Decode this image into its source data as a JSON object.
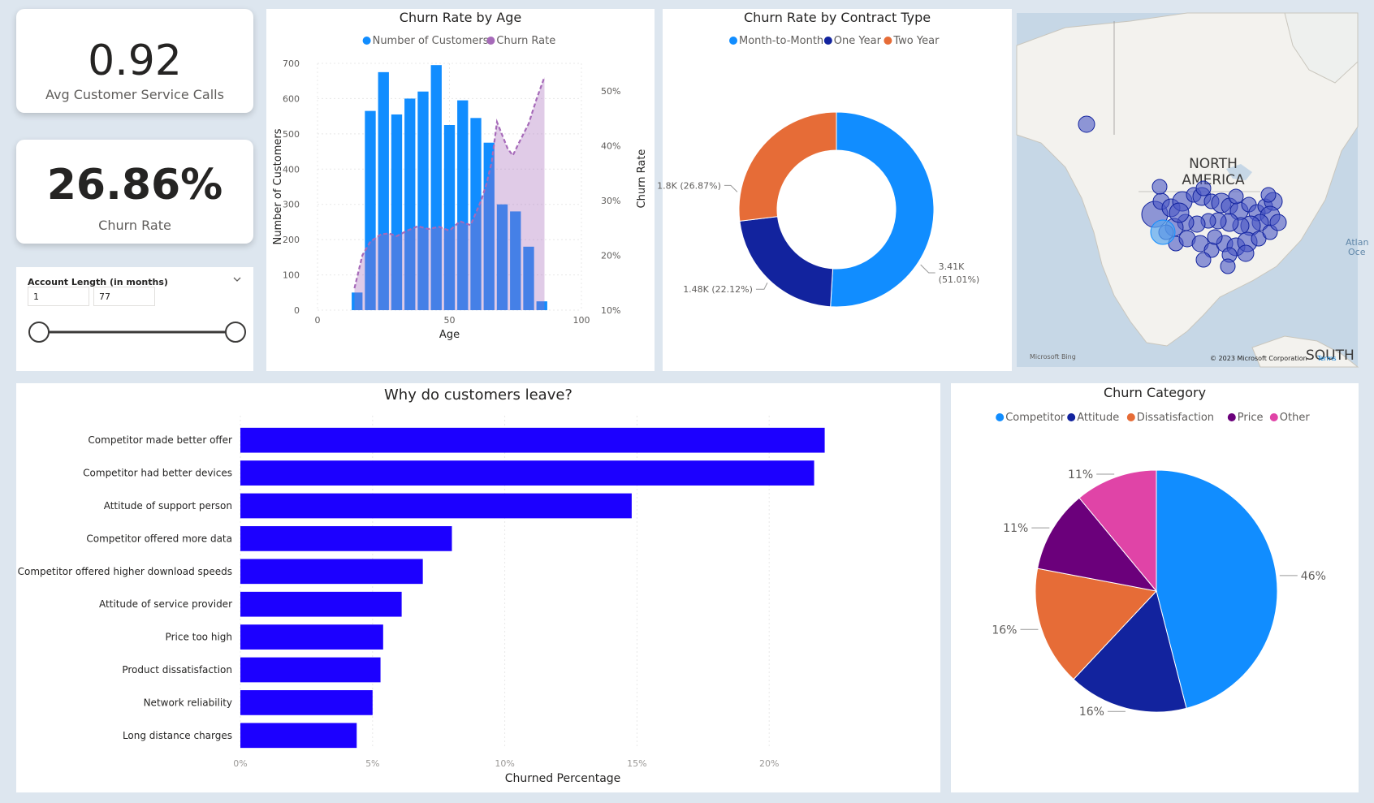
{
  "kpis": [
    {
      "value": "0.92",
      "label": "Avg Customer Service Calls"
    },
    {
      "value": "26.86%",
      "label": "Churn Rate"
    }
  ],
  "slicer": {
    "title": "Account Length (in months)",
    "min_value": "1",
    "max_value": "77"
  },
  "map": {
    "label_line1": "NORTH",
    "label_line2": "AMERICA",
    "south_label": "SOUTH",
    "atlantic_label": "Atlan",
    "ocean_label": "Oce",
    "attribution": "© 2023 Microsoft Corporation",
    "terms": "Terms",
    "bing": "Microsoft Bing"
  },
  "colors": {
    "accent_blue": "#118dff",
    "dark_blue": "#12239e",
    "orange": "#e66c37",
    "purple": "#6b007b",
    "pink": "#e044a7",
    "bar_blue": "#1c00ff",
    "churn_purple": "#a66ab9",
    "background": "#dde6ef"
  },
  "chart_data": [
    {
      "id": "age",
      "type": "bar",
      "title": "Churn Rate by Age",
      "xlabel": "Age",
      "ylabel": "Number of Customers",
      "y2label": "Churn Rate",
      "xlim": [
        0,
        100
      ],
      "ylim": [
        0,
        700
      ],
      "y2lim": [
        10,
        55
      ],
      "x_ticks": [
        "0",
        "50",
        "100"
      ],
      "y_ticks": [
        "0",
        "100",
        "200",
        "300",
        "400",
        "500",
        "600",
        "700"
      ],
      "y2_ticks": [
        "10%",
        "20%",
        "30%",
        "40%",
        "50%"
      ],
      "series": [
        {
          "name": "Number of Customers",
          "type": "bar",
          "x": [
            15,
            20,
            25,
            30,
            35,
            40,
            45,
            50,
            55,
            60,
            65,
            70,
            75,
            80,
            85
          ],
          "values": [
            50,
            565,
            675,
            555,
            600,
            620,
            695,
            525,
            595,
            545,
            475,
            300,
            280,
            180,
            25
          ]
        },
        {
          "name": "Churn Rate",
          "type": "area",
          "x": [
            14,
            17,
            20,
            24,
            27,
            30,
            34,
            38,
            42,
            46,
            50,
            54,
            58,
            62,
            64,
            66,
            68,
            72,
            74,
            76,
            80,
            83,
            86
          ],
          "values": [
            14,
            20,
            22.5,
            23.8,
            24,
            23.5,
            24.5,
            25.3,
            24.8,
            25.2,
            24.5,
            26.2,
            25.5,
            30,
            33,
            37,
            44.3,
            39.5,
            38.2,
            40.2,
            44,
            48.5,
            52.5
          ]
        }
      ]
    },
    {
      "id": "contract",
      "type": "pie",
      "donut": true,
      "title": "Churn Rate by Contract Type",
      "categories": [
        "Month-to-Month",
        "One Year",
        "Two Year"
      ],
      "values": [
        3410,
        1480,
        1800
      ],
      "percent": [
        51.01,
        22.12,
        26.87
      ],
      "labels": [
        "3.41K",
        "(51.01%)",
        "1.48K (22.12%)",
        "1.8K (26.87%)"
      ]
    },
    {
      "id": "reasons",
      "type": "bar",
      "orientation": "horizontal",
      "title": "Why do customers leave?",
      "xlabel": "Churned Percentage",
      "xlim": [
        0,
        25
      ],
      "x_ticks": [
        "0%",
        "5%",
        "10%",
        "15%",
        "20%"
      ],
      "categories": [
        "Competitor made better offer",
        "Competitor had better devices",
        "Attitude of support person",
        "Competitor offered more data",
        "Competitor offered higher download speeds",
        "Attitude of service provider",
        "Price too high",
        "Product dissatisfaction",
        "Network reliability",
        "Long distance charges"
      ],
      "values": [
        22.1,
        21.7,
        14.8,
        8.0,
        6.9,
        6.1,
        5.4,
        5.3,
        5.0,
        4.4
      ]
    },
    {
      "id": "category",
      "type": "pie",
      "title": "Churn Category",
      "categories": [
        "Competitor",
        "Attitude",
        "Dissatisfaction",
        "Price",
        "Other"
      ],
      "values": [
        46,
        16,
        16,
        11,
        11
      ],
      "labels": [
        "46%",
        "16%",
        "16%",
        "11%",
        "11%"
      ]
    }
  ]
}
